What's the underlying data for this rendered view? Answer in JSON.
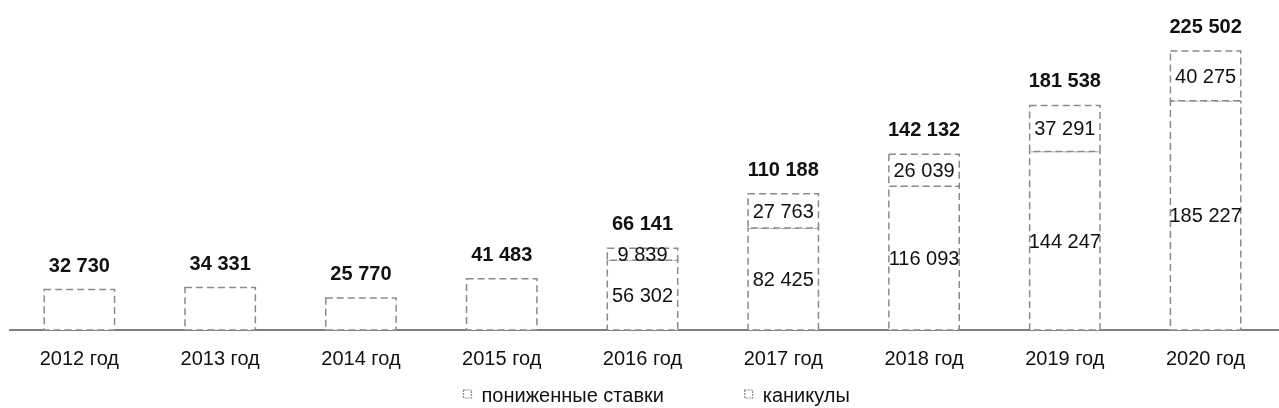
{
  "chart_data": {
    "type": "bar",
    "stacked": true,
    "categories": [
      "2012 год",
      "2013 год",
      "2014 год",
      "2015 год",
      "2016 год",
      "2017 год",
      "2018 год",
      "2019 год",
      "2020 год"
    ],
    "series": [
      {
        "name": "пониженные ставки",
        "color": "#ffffff",
        "values": [
          32730,
          34331,
          25770,
          41483,
          56302,
          82425,
          116093,
          144247,
          185227
        ],
        "value_labels": [
          null,
          null,
          null,
          null,
          "56 302",
          "82 425",
          "116 093",
          "144 247",
          "185 227"
        ]
      },
      {
        "name": "каникулы",
        "color": "#ffffff",
        "values": [
          null,
          null,
          null,
          null,
          9839,
          27763,
          26039,
          37291,
          40275
        ],
        "value_labels": [
          null,
          null,
          null,
          null,
          "9 839",
          "27 763",
          "26 039",
          "37 291",
          "40 275"
        ]
      }
    ],
    "totals": [
      "32 730",
      "34 331",
      "25 770",
      "41 483",
      "66 141",
      "110 188",
      "142 132",
      "181 538",
      "225 502"
    ],
    "legend": "bottom"
  }
}
